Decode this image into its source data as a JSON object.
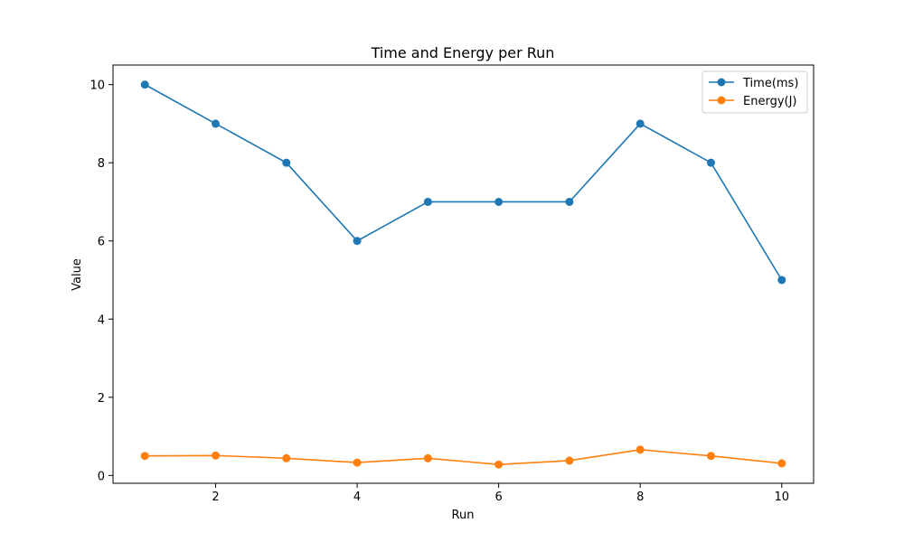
{
  "chart_data": {
    "type": "line",
    "title": "Time and Energy per Run",
    "xlabel": "Run",
    "ylabel": "Value",
    "x": [
      1,
      2,
      3,
      4,
      5,
      6,
      7,
      8,
      9,
      10
    ],
    "xlim": [
      0.55,
      10.45
    ],
    "ylim": [
      -0.2,
      10.5
    ],
    "xticks": [
      2,
      4,
      6,
      8,
      10
    ],
    "yticks": [
      0,
      2,
      4,
      6,
      8,
      10
    ],
    "grid": false,
    "legend_position": "top-right",
    "series": [
      {
        "name": "Time(ms)",
        "color": "#1f77b4",
        "marker": "circle",
        "values": [
          10,
          9,
          8,
          6,
          7,
          7,
          7,
          9,
          8,
          5
        ]
      },
      {
        "name": "Energy(J)",
        "color": "#ff7f0e",
        "marker": "circle",
        "values": [
          0.5,
          0.51,
          0.44,
          0.33,
          0.44,
          0.28,
          0.38,
          0.66,
          0.5,
          0.31
        ]
      }
    ]
  }
}
